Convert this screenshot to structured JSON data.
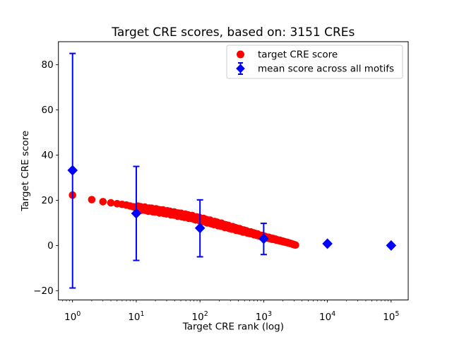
{
  "window": {
    "background": "#ffffff"
  },
  "chart_data": {
    "type": "scatter",
    "title": "Target CRE scores, based on: 3151 CREs",
    "xlabel": "Target CRE rank (log)",
    "ylabel": "Target CRE score",
    "n_cres": 3151,
    "x_scale": "log",
    "xlim_log10": [
      -0.222,
      5.268
    ],
    "ylim": [
      -24.1,
      90.2
    ],
    "x_tick_exponents": [
      0,
      1,
      2,
      3,
      4,
      5
    ],
    "y_ticks": [
      -20,
      0,
      20,
      40,
      60,
      80
    ],
    "grid": false,
    "colors": {
      "target": "#ff0000",
      "mean": "#0000ff",
      "frame": "#000000",
      "legend_border": "#cccccc"
    },
    "series": [
      {
        "name": "target CRE score",
        "color": "#ff0000",
        "marker": "circle",
        "curve_anchors_rank_score": [
          [
            1,
            22.3
          ],
          [
            2,
            20.3
          ],
          [
            3,
            19.4
          ],
          [
            4,
            18.9
          ],
          [
            5,
            18.5
          ],
          [
            7,
            17.9
          ],
          [
            10,
            16.8
          ],
          [
            15,
            16.0
          ],
          [
            20,
            15.5
          ],
          [
            30,
            14.7
          ],
          [
            50,
            13.5
          ],
          [
            70,
            12.7
          ],
          [
            100,
            11.6
          ],
          [
            150,
            10.3
          ],
          [
            200,
            9.4
          ],
          [
            300,
            8.0
          ],
          [
            500,
            6.3
          ],
          [
            700,
            5.2
          ],
          [
            1000,
            3.9
          ],
          [
            1500,
            2.7
          ],
          [
            2000,
            1.8
          ],
          [
            2500,
            1.1
          ],
          [
            3151,
            0.2
          ]
        ]
      },
      {
        "name": "mean score across all motifs",
        "color": "#0000ff",
        "marker": "diamond",
        "points": [
          {
            "rank": 1,
            "mean": 33.3,
            "lo": -18.8,
            "hi": 85.0
          },
          {
            "rank": 10,
            "mean": 14.2,
            "lo": -6.6,
            "hi": 35.0
          },
          {
            "rank": 100,
            "mean": 7.7,
            "lo": -5.0,
            "hi": 20.2
          },
          {
            "rank": 1000,
            "mean": 3.0,
            "lo": -4.0,
            "hi": 9.8
          },
          {
            "rank": 10000,
            "mean": 0.8,
            "lo": 0.2,
            "hi": 1.4
          },
          {
            "rank": 100000,
            "mean": 0.0,
            "lo": -0.4,
            "hi": 0.4
          }
        ]
      }
    ],
    "legend": {
      "position": "upper right",
      "entries": [
        "target CRE score",
        "mean score across all motifs"
      ]
    }
  }
}
